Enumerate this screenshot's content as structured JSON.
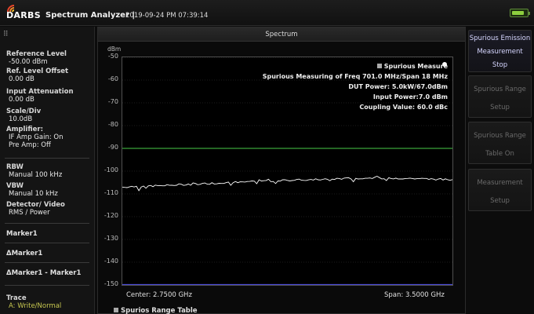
{
  "header": {
    "logo_text": "DARBS",
    "title": "Spectrum Analyzer |",
    "timestamp": "2019-09-24 PM 07:39:14",
    "battery_level": 0.85
  },
  "left_panel": {
    "reference_level": {
      "label": "Reference Level",
      "value": "-50.00 dBm"
    },
    "ref_level_offset": {
      "label": "Ref. Level Offset",
      "value": "0.00 dB"
    },
    "input_attenuation": {
      "label": "Input Attenuation",
      "value": "0.00 dB"
    },
    "scale_div": {
      "label": "Scale/Div",
      "value": "10.0dB"
    },
    "amplifier": {
      "label": "Amplifier:",
      "if_amp": "IF Amp Gain: On",
      "pre_amp": "Pre Amp: Off"
    },
    "rbw": {
      "label": "RBW",
      "value": "Manual 100 kHz"
    },
    "vbw": {
      "label": "VBW",
      "value": "Manual 10 kHz"
    },
    "detector": {
      "label": "Detector/ Video",
      "value": "RMS / Power"
    },
    "marker1": "Marker1",
    "delta_marker1": "ΔMarker1",
    "delta_marker1_minus": "ΔMarker1 - Marker1",
    "trace": {
      "label": "Trace",
      "value": "A: Write/Normal"
    }
  },
  "spectrum": {
    "header": "Spectrum",
    "unit": "dBm",
    "y_ticks": [
      "-50",
      "-60",
      "-70",
      "-80",
      "-90",
      "-100",
      "-110",
      "-120",
      "-130",
      "-140",
      "-150"
    ],
    "info": {
      "title": "Spurious Measure",
      "freq": "Spurious Measuring of Freq 701.0 MHz/Span 18 MHz",
      "dut_power": "DUT Power: 5.0kW/67.0dBm",
      "input_power": "Input Power:7.0 dBm",
      "coupling": "Coupling Value: 60.0 dBc"
    },
    "center": "Center: 2.7500 GHz",
    "span": "Span: 3.5000 GHz",
    "table_label": "Spurios Range Table",
    "limit_line_dbm": -90,
    "chart_data": {
      "type": "line",
      "ylim": [
        -150,
        -50
      ],
      "ylabel": "dBm",
      "series": [
        {
          "name": "Trace A",
          "color": "#ffffff",
          "values": [
            -107,
            -106.7,
            -106.5,
            -106.4,
            -106,
            -105.8,
            -105.5,
            -105.2,
            -104.9,
            -104.7,
            -104.5,
            -104.3,
            -104,
            -103.8,
            -103.6,
            -103.4,
            -103.3,
            -103.2,
            -103.1,
            -103,
            -103.1,
            -103.2,
            -103.4,
            -103.6,
            -103.8
          ]
        },
        {
          "name": "Limit",
          "color": "#3aa33a",
          "values": [
            -90,
            -90
          ]
        }
      ]
    }
  },
  "softkeys": [
    {
      "line1": "Spurious Emission",
      "line2": "Measurement",
      "line3": "Stop",
      "active": true
    },
    {
      "line1": "Spurious Range",
      "line2": "Setup",
      "active": false
    },
    {
      "line1": "Spurious Range",
      "line2": "Table On",
      "active": false
    },
    {
      "line1": "Measurement",
      "line2": "Setup",
      "active": false
    }
  ]
}
